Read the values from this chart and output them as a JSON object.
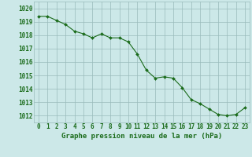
{
  "x": [
    0,
    1,
    2,
    3,
    4,
    5,
    6,
    7,
    8,
    9,
    10,
    11,
    12,
    13,
    14,
    15,
    16,
    17,
    18,
    19,
    20,
    21,
    22,
    23
  ],
  "y": [
    1019.4,
    1019.4,
    1019.1,
    1018.8,
    1018.3,
    1018.1,
    1017.8,
    1018.1,
    1017.8,
    1017.8,
    1017.5,
    1016.6,
    1015.4,
    1014.8,
    1014.9,
    1014.8,
    1014.1,
    1013.2,
    1012.9,
    1012.5,
    1012.1,
    1012.0,
    1012.1,
    1012.6
  ],
  "line_color": "#1a6b1a",
  "marker": "D",
  "marker_size": 2.0,
  "bg_color": "#cce8e8",
  "grid_color": "#99bbbb",
  "xlabel": "Graphe pression niveau de la mer (hPa)",
  "xlabel_color": "#1a6b1a",
  "tick_color": "#1a6b1a",
  "ylim": [
    1011.5,
    1020.5
  ],
  "xlim": [
    -0.5,
    23.5
  ],
  "yticks": [
    1012,
    1013,
    1014,
    1015,
    1016,
    1017,
    1018,
    1019,
    1020
  ],
  "xticks": [
    0,
    1,
    2,
    3,
    4,
    5,
    6,
    7,
    8,
    9,
    10,
    11,
    12,
    13,
    14,
    15,
    16,
    17,
    18,
    19,
    20,
    21,
    22,
    23
  ],
  "tick_fontsize": 5.5,
  "xlabel_fontsize": 6.5,
  "linewidth": 0.8
}
